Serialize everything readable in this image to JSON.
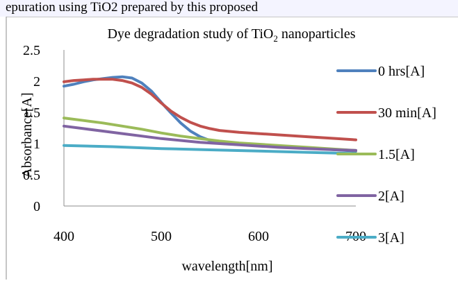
{
  "page": {
    "header_fragment": "epuration using TiO2 prepared by this proposed"
  },
  "chart_data": {
    "type": "line",
    "title": {
      "prefix": "Dye degradation study of TiO",
      "subscript": "2",
      "suffix": " nanoparticles"
    },
    "xlabel": "wavelength[nm]",
    "ylabel": "Absorbance[A]",
    "xlim": [
      400,
      700
    ],
    "ylim": [
      0,
      2.5
    ],
    "x_ticks": [
      "400",
      "500",
      "600",
      "700"
    ],
    "y_ticks": [
      "0",
      "0.5",
      "1",
      "1.5",
      "2",
      "2.5"
    ],
    "grid": false,
    "legend_position": "right",
    "series": [
      {
        "name": "0 hrs[A]",
        "color": "#4f81bd",
        "x": [
          400,
          410,
          420,
          430,
          440,
          450,
          460,
          470,
          480,
          490,
          500,
          510,
          520,
          530,
          540,
          550,
          560,
          580,
          600,
          620,
          650,
          680,
          700
        ],
        "y": [
          1.92,
          1.95,
          1.99,
          2.02,
          2.04,
          2.06,
          2.07,
          2.05,
          1.97,
          1.84,
          1.66,
          1.49,
          1.33,
          1.2,
          1.11,
          1.05,
          1.02,
          0.99,
          0.97,
          0.95,
          0.93,
          0.9,
          0.88
        ]
      },
      {
        "name": "30 min[A]",
        "color": "#c0504d",
        "x": [
          400,
          410,
          420,
          430,
          440,
          450,
          460,
          470,
          480,
          490,
          500,
          510,
          520,
          530,
          540,
          550,
          560,
          580,
          600,
          620,
          650,
          680,
          700
        ],
        "y": [
          1.99,
          2.01,
          2.02,
          2.03,
          2.03,
          2.03,
          2.01,
          1.97,
          1.9,
          1.79,
          1.65,
          1.52,
          1.42,
          1.34,
          1.28,
          1.24,
          1.21,
          1.18,
          1.16,
          1.14,
          1.11,
          1.08,
          1.06
        ]
      },
      {
        "name": "1.5[A]",
        "color": "#9bbb59",
        "x": [
          400,
          420,
          440,
          460,
          480,
          500,
          520,
          540,
          560,
          580,
          600,
          620,
          650,
          680,
          700
        ],
        "y": [
          1.41,
          1.37,
          1.33,
          1.28,
          1.23,
          1.17,
          1.12,
          1.08,
          1.04,
          1.01,
          0.99,
          0.97,
          0.94,
          0.91,
          0.89
        ]
      },
      {
        "name": "2[A]",
        "color": "#8064a2",
        "x": [
          400,
          420,
          440,
          460,
          480,
          500,
          520,
          540,
          560,
          580,
          600,
          620,
          650,
          680,
          700
        ],
        "y": [
          1.28,
          1.24,
          1.2,
          1.16,
          1.12,
          1.08,
          1.05,
          1.02,
          1.0,
          0.98,
          0.96,
          0.94,
          0.92,
          0.9,
          0.89
        ]
      },
      {
        "name": "3[A]",
        "color": "#4bacc6",
        "x": [
          400,
          450,
          500,
          550,
          600,
          650,
          700
        ],
        "y": [
          0.97,
          0.95,
          0.92,
          0.9,
          0.88,
          0.86,
          0.84
        ]
      }
    ]
  }
}
